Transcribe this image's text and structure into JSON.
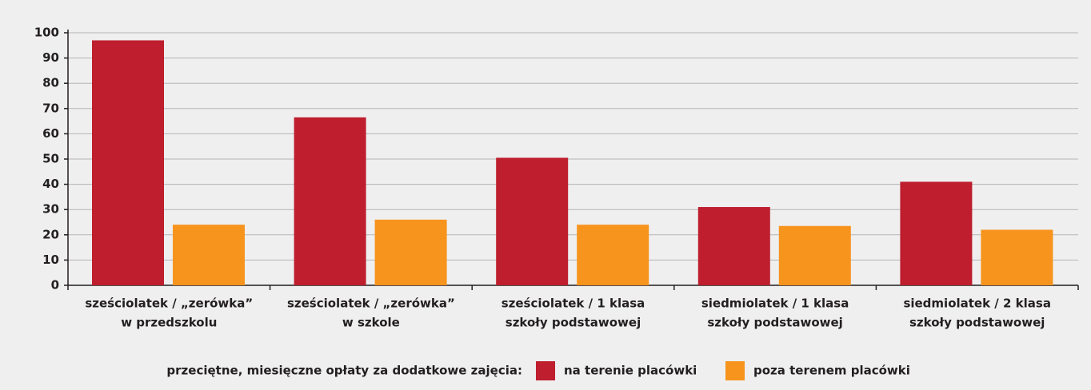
{
  "chart_data": {
    "type": "bar",
    "categories": [
      [
        "sześciolatek / „zerówka”",
        "w przedszkolu"
      ],
      [
        "sześciolatek / „zerówka”",
        "w szkole"
      ],
      [
        "sześciolatek / 1 klasa",
        "szkoły podstawowej"
      ],
      [
        "siedmiolatek / 1 klasa",
        "szkoły podstawowej"
      ],
      [
        "siedmiolatek / 2 klasa",
        "szkoły podstawowej"
      ]
    ],
    "series": [
      {
        "name": "na terenie placówki",
        "color": "#be1e2d",
        "values": [
          97,
          66.5,
          50.5,
          31,
          41
        ]
      },
      {
        "name": "poza terenem placówki",
        "color": "#f7941d",
        "values": [
          24,
          26,
          24,
          23.5,
          22
        ]
      }
    ],
    "legend_title": "przeciętne, miesięczne opłaty za dodatkowe zajęcia:",
    "ylim": [
      0,
      100
    ],
    "yticks": [
      0,
      10,
      20,
      30,
      40,
      50,
      60,
      70,
      80,
      90,
      100
    ],
    "grid": true
  }
}
